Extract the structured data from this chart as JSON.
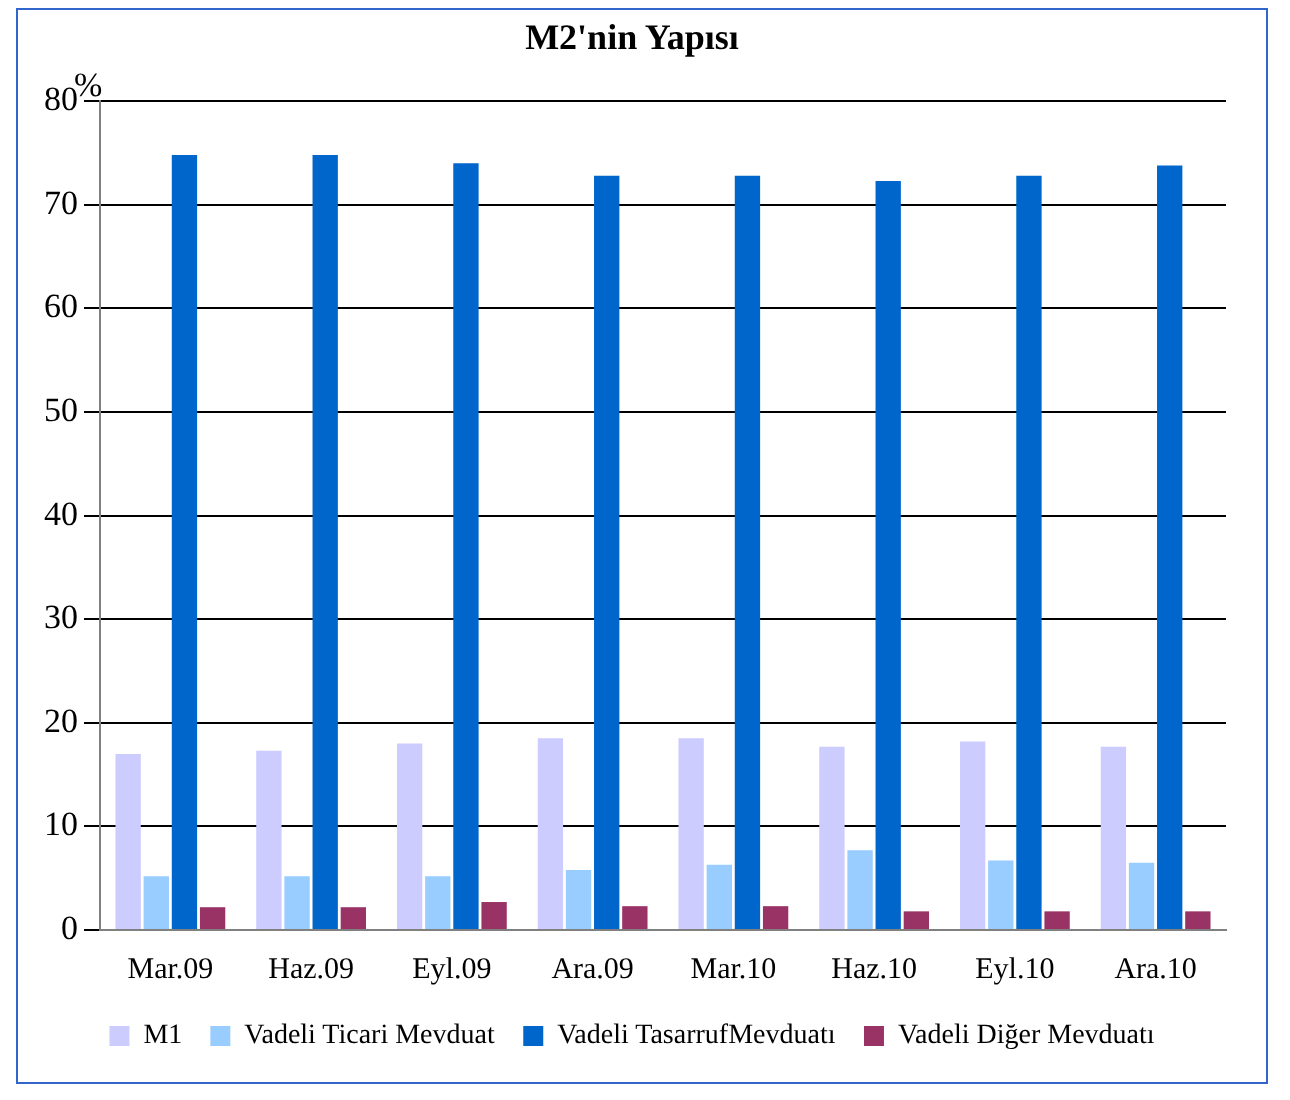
{
  "chart_data": {
    "type": "bar",
    "title": "M2'nin Yapısı",
    "ylabel": "%",
    "categories": [
      "Mar.09",
      "Haz.09",
      "Eyl.09",
      "Ara.09",
      "Mar.10",
      "Haz.10",
      "Eyl.10",
      "Ara.10"
    ],
    "series": [
      {
        "name": "M1",
        "color": "#ccccff",
        "values": [
          17,
          17.3,
          18,
          18.5,
          18.5,
          17.7,
          18.2,
          17.7
        ]
      },
      {
        "name": "Vadeli Ticari Mevduat",
        "color": "#99ccff",
        "values": [
          5.2,
          5.2,
          5.2,
          5.8,
          6.3,
          7.7,
          6.7,
          6.5
        ]
      },
      {
        "name": "Vadeli TasarrufMevduatı",
        "color": "#0066cc",
        "values": [
          74.8,
          74.8,
          74,
          72.8,
          72.8,
          72.3,
          72.8,
          73.8
        ]
      },
      {
        "name": "Vadeli Diğer Mevduatı",
        "color": "#993366",
        "values": [
          2.2,
          2.2,
          2.7,
          2.3,
          2.3,
          1.8,
          1.8,
          1.8
        ]
      }
    ],
    "ylim": [
      0,
      80
    ],
    "yticks": [
      0,
      10,
      20,
      30,
      40,
      50,
      60,
      70,
      80
    ],
    "grid": "y",
    "legend": "bottom"
  }
}
